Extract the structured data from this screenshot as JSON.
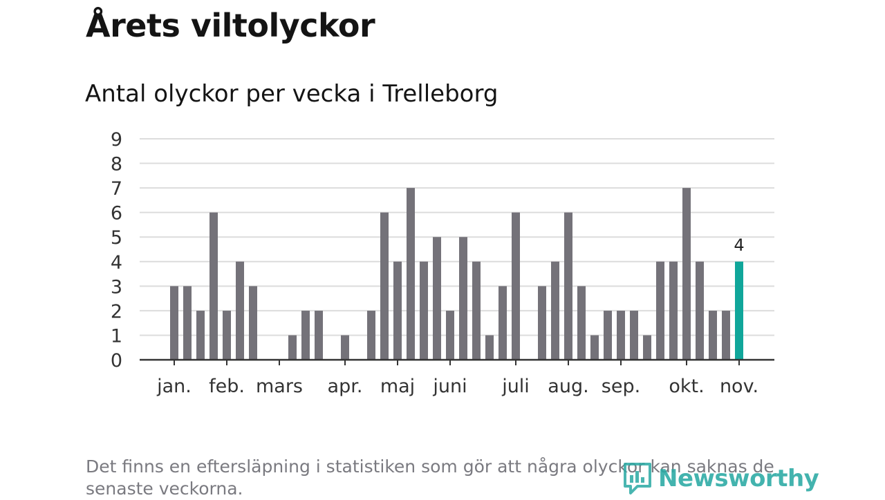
{
  "chart_data": {
    "type": "bar",
    "title": "Årets viltolyckor",
    "subtitle": "Antal olyckor per vecka i Trelleborg",
    "xlabel": "",
    "ylabel": "",
    "ylim": [
      0,
      9
    ],
    "yticks": [
      "0",
      "1",
      "2",
      "3",
      "4",
      "5",
      "6",
      "7",
      "8",
      "9"
    ],
    "grid": true,
    "values": [
      3,
      3,
      2,
      6,
      2,
      4,
      3,
      0,
      0,
      1,
      2,
      2,
      0,
      1,
      0,
      2,
      6,
      4,
      7,
      4,
      5,
      2,
      5,
      4,
      1,
      3,
      6,
      0,
      3,
      4,
      6,
      3,
      1,
      2,
      2,
      2,
      1,
      4,
      4,
      7,
      4,
      2,
      2,
      4
    ],
    "month_labels": [
      {
        "label": "jan.",
        "week": 1
      },
      {
        "label": "feb.",
        "week": 5
      },
      {
        "label": "mars",
        "week": 9
      },
      {
        "label": "apr.",
        "week": 14
      },
      {
        "label": "maj",
        "week": 18
      },
      {
        "label": "juni",
        "week": 22
      },
      {
        "label": "juli",
        "week": 27
      },
      {
        "label": "aug.",
        "week": 31
      },
      {
        "label": "sep.",
        "week": 35
      },
      {
        "label": "okt.",
        "week": 40
      },
      {
        "label": "nov.",
        "week": 44
      }
    ],
    "highlight_index": 43,
    "highlight_label": "4",
    "bar_color": "#747279",
    "highlight_color": "#10a69a"
  },
  "footnote": "Det finns en eftersläpning i statistiken som gör att några olyckor kan saknas de senaste veckorna.",
  "brand": {
    "name": "Newsworthy",
    "color": "#2aa9a3"
  }
}
